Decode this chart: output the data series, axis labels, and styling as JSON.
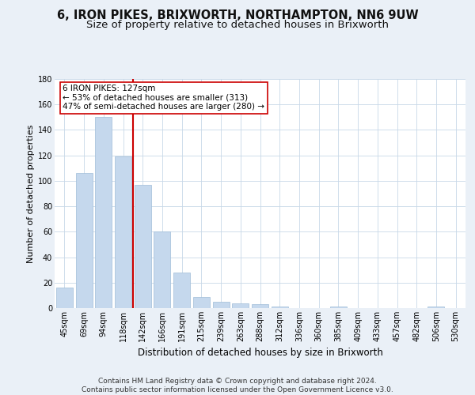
{
  "title": "6, IRON PIKES, BRIXWORTH, NORTHAMPTON, NN6 9UW",
  "subtitle": "Size of property relative to detached houses in Brixworth",
  "xlabel": "Distribution of detached houses by size in Brixworth",
  "ylabel": "Number of detached properties",
  "bar_labels": [
    "45sqm",
    "69sqm",
    "94sqm",
    "118sqm",
    "142sqm",
    "166sqm",
    "191sqm",
    "215sqm",
    "239sqm",
    "263sqm",
    "288sqm",
    "312sqm",
    "336sqm",
    "360sqm",
    "385sqm",
    "409sqm",
    "433sqm",
    "457sqm",
    "482sqm",
    "506sqm",
    "530sqm"
  ],
  "bar_values": [
    16,
    106,
    150,
    119,
    97,
    60,
    28,
    9,
    5,
    4,
    3,
    1,
    0,
    0,
    1,
    0,
    0,
    0,
    0,
    1,
    0
  ],
  "bar_color": "#c5d8ed",
  "bar_edge_color": "#a0bcd8",
  "vline_x": 3.5,
  "vline_color": "#cc0000",
  "annotation_text": "6 IRON PIKES: 127sqm\n← 53% of detached houses are smaller (313)\n47% of semi-detached houses are larger (280) →",
  "annotation_box_color": "#ffffff",
  "annotation_box_edge": "#cc0000",
  "ylim": [
    0,
    180
  ],
  "yticks": [
    0,
    20,
    40,
    60,
    80,
    100,
    120,
    140,
    160,
    180
  ],
  "bg_color": "#eaf0f7",
  "plot_bg_color": "#ffffff",
  "grid_color": "#c8d8e8",
  "footer": "Contains HM Land Registry data © Crown copyright and database right 2024.\nContains public sector information licensed under the Open Government Licence v3.0.",
  "title_fontsize": 10.5,
  "subtitle_fontsize": 9.5,
  "xlabel_fontsize": 8.5,
  "ylabel_fontsize": 8,
  "tick_fontsize": 7,
  "footer_fontsize": 6.5,
  "ann_fontsize": 7.5
}
